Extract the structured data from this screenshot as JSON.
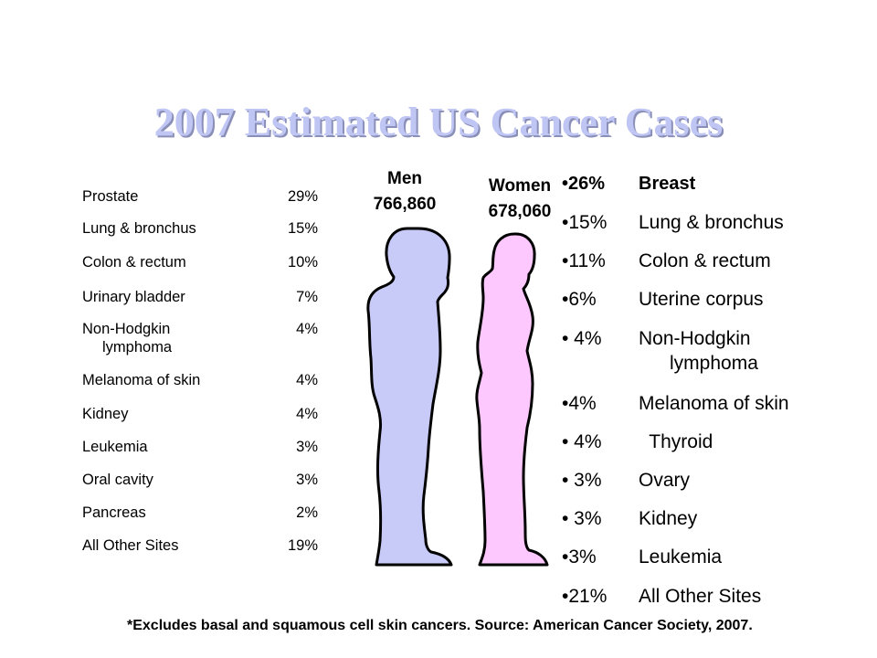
{
  "title": "2007 Estimated US Cancer Cases",
  "men": {
    "label": "Men",
    "count": "766,860",
    "items": [
      {
        "site": "Prostate",
        "pct": "29%"
      },
      {
        "site": "Lung & bronchus",
        "pct": "15%"
      },
      {
        "site": "Colon & rectum",
        "pct": "10%"
      },
      {
        "site": "Urinary bladder",
        "pct": "7%"
      },
      {
        "site": "Non-Hodgkin",
        "site2": "lymphoma",
        "pct": "4%"
      },
      {
        "site": "Melanoma of skin",
        "pct": "4%"
      },
      {
        "site": "Kidney",
        "pct": "4%"
      },
      {
        "site": "Leukemia",
        "pct": "3%"
      },
      {
        "site": "Oral cavity",
        "pct": "3%"
      },
      {
        "site": "Pancreas",
        "pct": "2%"
      },
      {
        "site": "All Other Sites",
        "pct": "19%"
      }
    ]
  },
  "women": {
    "label": "Women",
    "count": "678,060",
    "items": [
      {
        "pct": "•26%",
        "site": "Breast"
      },
      {
        "pct": "•15%",
        "site": "Lung & bronchus"
      },
      {
        "pct": "•11%",
        "site": "Colon & rectum"
      },
      {
        "pct": "•6%",
        "site": "Uterine corpus"
      },
      {
        "pct": "• 4%",
        "site": "Non-Hodgkin",
        "site2": "lymphoma"
      },
      {
        "pct": "•4%",
        "site": "Melanoma of skin"
      },
      {
        "pct": "• 4%",
        "site": "  Thyroid"
      },
      {
        "pct": "• 3%",
        "site": "Ovary"
      },
      {
        "pct": "• 3%",
        "site": "Kidney"
      },
      {
        "pct": "•3%",
        "site": "Leukemia"
      },
      {
        "pct": "•21%",
        "site": "All Other Sites"
      }
    ]
  },
  "footnote": "*Excludes basal and squamous cell skin cancers. Source: American Cancer Society, 2007.",
  "colors": {
    "title": "#c0c6f4",
    "men_figure": "#c8cbf8",
    "women_figure": "#fdc8fd"
  }
}
